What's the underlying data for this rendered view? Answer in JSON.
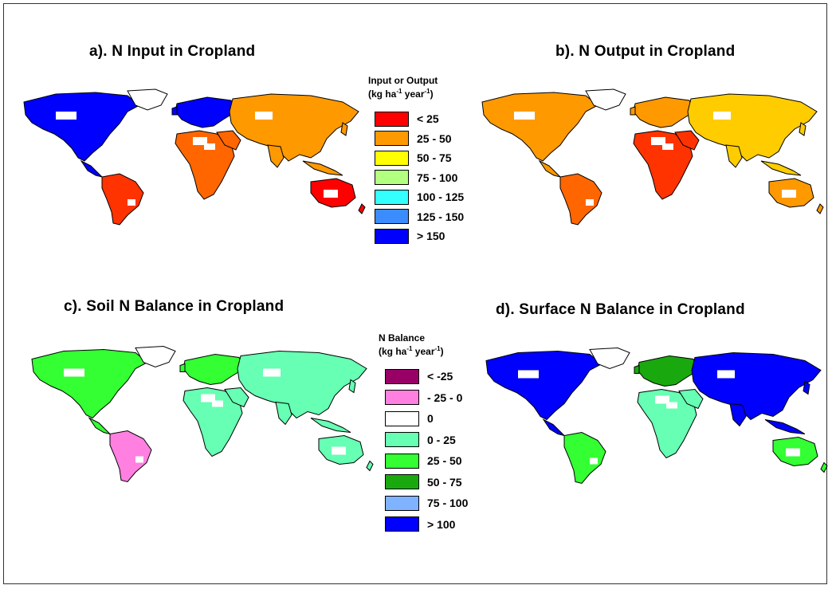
{
  "panels": [
    {
      "id": "a",
      "title": "a). N Input in Cropland"
    },
    {
      "id": "b",
      "title": "b). N Output in Cropland"
    },
    {
      "id": "c",
      "title": "c). Soil N Balance in Cropland"
    },
    {
      "id": "d",
      "title": "d). Surface N Balance in Cropland"
    }
  ],
  "legend_top": {
    "title_line1": "Input or Output",
    "title_line2": "(kg ha",
    "title_sup1": "-1",
    "title_mid": " year",
    "title_sup2": "-1",
    "title_end": ")",
    "items": [
      {
        "label": "< 25",
        "color": "#ff0000"
      },
      {
        "label": "25 - 50",
        "color": "#ff9900"
      },
      {
        "label": "50 - 75",
        "color": "#ffff00"
      },
      {
        "label": "75 - 100",
        "color": "#b3ff80"
      },
      {
        "label": "100 - 125",
        "color": "#33ffff"
      },
      {
        "label": "125 - 150",
        "color": "#3b8cff"
      },
      {
        "label": "> 150",
        "color": "#0000ff"
      }
    ]
  },
  "legend_bottom": {
    "title_line1": "N Balance",
    "title_line2": "(kg ha",
    "title_sup1": "-1",
    "title_mid": " year",
    "title_sup2": "-1",
    "title_end": ")",
    "items": [
      {
        "label": "< -25",
        "color": "#990066"
      },
      {
        "label": "- 25 - 0",
        "color": "#ff80e0"
      },
      {
        "label": "0",
        "color": "#ffffff"
      },
      {
        "label": "0 - 25",
        "color": "#66ffb3"
      },
      {
        "label": "25 - 50",
        "color": "#33ff33"
      },
      {
        "label": "50 - 75",
        "color": "#1aa80f"
      },
      {
        "label": "75 - 100",
        "color": "#80b3ff"
      },
      {
        "label": "> 100",
        "color": "#0000ff"
      }
    ]
  },
  "map_palettes": {
    "a": {
      "na": "#0000ff",
      "sa": "#ff3300",
      "eu": "#0000ff",
      "af": "#ff6600",
      "as": "#ff9900",
      "au": "#ff0000"
    },
    "b": {
      "na": "#ff9900",
      "sa": "#ff6600",
      "eu": "#ff9900",
      "af": "#ff3300",
      "as": "#ffcc00",
      "au": "#ff9900"
    },
    "c": {
      "na": "#33ff33",
      "sa": "#ff80e0",
      "eu": "#33ff33",
      "af": "#66ffb3",
      "as": "#66ffb3",
      "au": "#66ffb3"
    },
    "d": {
      "na": "#0000ff",
      "sa": "#33ff33",
      "eu": "#1aa80f",
      "af": "#66ffb3",
      "as": "#0000ff",
      "au": "#33ff33"
    }
  }
}
